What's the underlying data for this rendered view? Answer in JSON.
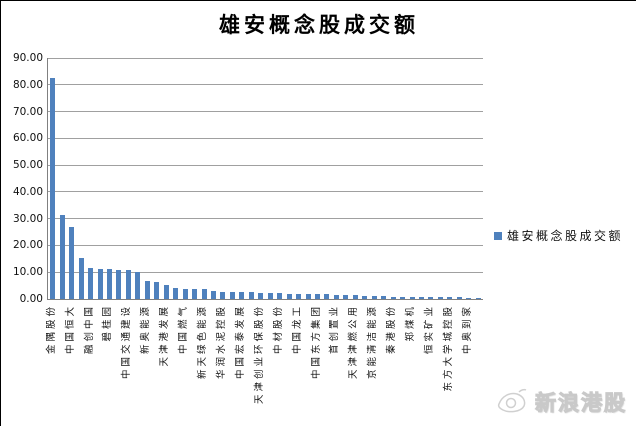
{
  "title": "雄安概念股成交额",
  "legend": {
    "label": "雄安概念股成交额"
  },
  "watermark": {
    "text": "新浪港股",
    "logo": "sina-eye-logo"
  },
  "chart_data": {
    "type": "bar",
    "title": "雄安概念股成交额",
    "bar_color": "#4f81bd",
    "grid": true,
    "legend_position": "right",
    "legend_entries": [
      "雄安概念股成交额"
    ],
    "ylim": [
      0,
      90
    ],
    "ytick_step": 10,
    "y_ticks": [
      "0.00",
      "10.00",
      "20.00",
      "30.00",
      "40.00",
      "50.00",
      "60.00",
      "70.00",
      "80.00",
      "90.00"
    ],
    "values": [
      82.5,
      31.5,
      27.0,
      15.2,
      11.4,
      11.1,
      11.3,
      11.0,
      10.7,
      10.2,
      6.9,
      6.5,
      5.4,
      4.2,
      3.9,
      3.8,
      3.7,
      3.0,
      2.8,
      2.7,
      2.6,
      2.5,
      2.4,
      2.3,
      2.1,
      2.0,
      1.9,
      1.9,
      1.8,
      1.7,
      1.6,
      1.5,
      1.4,
      1.3,
      1.2,
      1.2,
      0.9,
      0.8,
      0.8,
      0.7,
      0.7,
      0.6,
      0.6,
      0.6,
      0.5,
      0.5
    ],
    "x_label_every": 2,
    "x_labels": [
      "金隅股份",
      "中国恒大",
      "融创中国",
      "碧桂园",
      "中国交通建设",
      "新奥能源",
      "天津港发展",
      "中国燃气",
      "新天绿色能源",
      "华润水泥控股",
      "中国宏泰发展",
      "天津创业环保股份",
      "中材股份",
      "中国龙工",
      "中国东方集团",
      "首创置业",
      "天津津燃公用",
      "京能清洁能源",
      "秦港股份",
      "郑煤机",
      "恒实矿业",
      "东方大学城控股",
      "中奥到家"
    ]
  }
}
